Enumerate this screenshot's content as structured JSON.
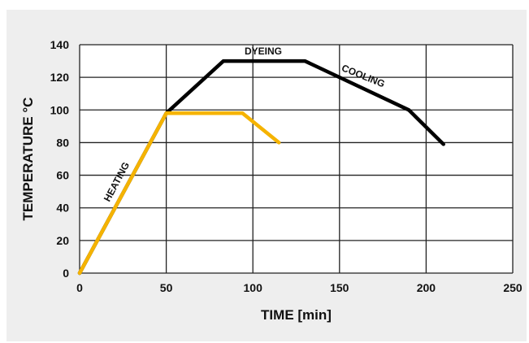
{
  "chart_data": {
    "type": "line",
    "xlabel": "TIME [min]",
    "ylabel": "TEMPERATURE °C",
    "xlim": [
      0,
      250
    ],
    "ylim": [
      0,
      140
    ],
    "x_ticks": [
      0,
      50,
      100,
      150,
      200,
      250
    ],
    "y_ticks": [
      0,
      20,
      40,
      60,
      80,
      100,
      120,
      140
    ],
    "grid": true,
    "series": [
      {
        "color": "#000000",
        "points": [
          [
            0,
            0
          ],
          [
            50,
            98
          ],
          [
            83,
            130
          ],
          [
            130,
            130
          ],
          [
            190,
            100
          ],
          [
            210,
            79
          ]
        ]
      },
      {
        "color": "#f5b300",
        "points": [
          [
            0,
            0
          ],
          [
            50,
            98
          ],
          [
            94,
            98
          ],
          [
            115,
            80
          ]
        ]
      }
    ],
    "annotations": [
      {
        "text": "HEATING",
        "x": 23,
        "y": 55
      },
      {
        "text": "DYEING",
        "x": 106,
        "y": 134
      },
      {
        "text": "COOLING",
        "x": 163,
        "y": 119
      }
    ]
  }
}
